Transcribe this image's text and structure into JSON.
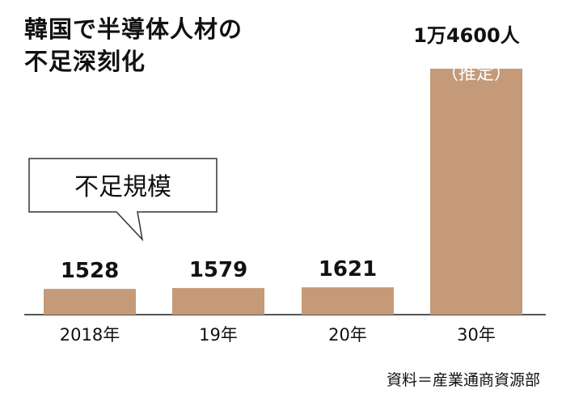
{
  "title_lines": [
    "韓国で半導体人材の",
    "不足深刻化"
  ],
  "callout": {
    "text": "不足規模"
  },
  "source": "資料＝産業通商資源部",
  "colors": {
    "bar": "#c49a78",
    "axis": "#555555",
    "text": "#111111"
  },
  "chart_data": {
    "type": "bar",
    "title": "韓国で半導体人材の不足深刻化",
    "categories": [
      "2018年",
      "19年",
      "20年",
      "30年"
    ],
    "values": [
      1528,
      1579,
      1621,
      14600
    ],
    "value_labels": [
      "1528",
      "1579",
      "1621",
      "1万4600人"
    ],
    "value_notes": [
      "",
      "",
      "",
      "（推定）"
    ],
    "ylim": [
      0,
      15700
    ],
    "xlabel": "",
    "ylabel": "",
    "grid": false,
    "legend": "none"
  }
}
